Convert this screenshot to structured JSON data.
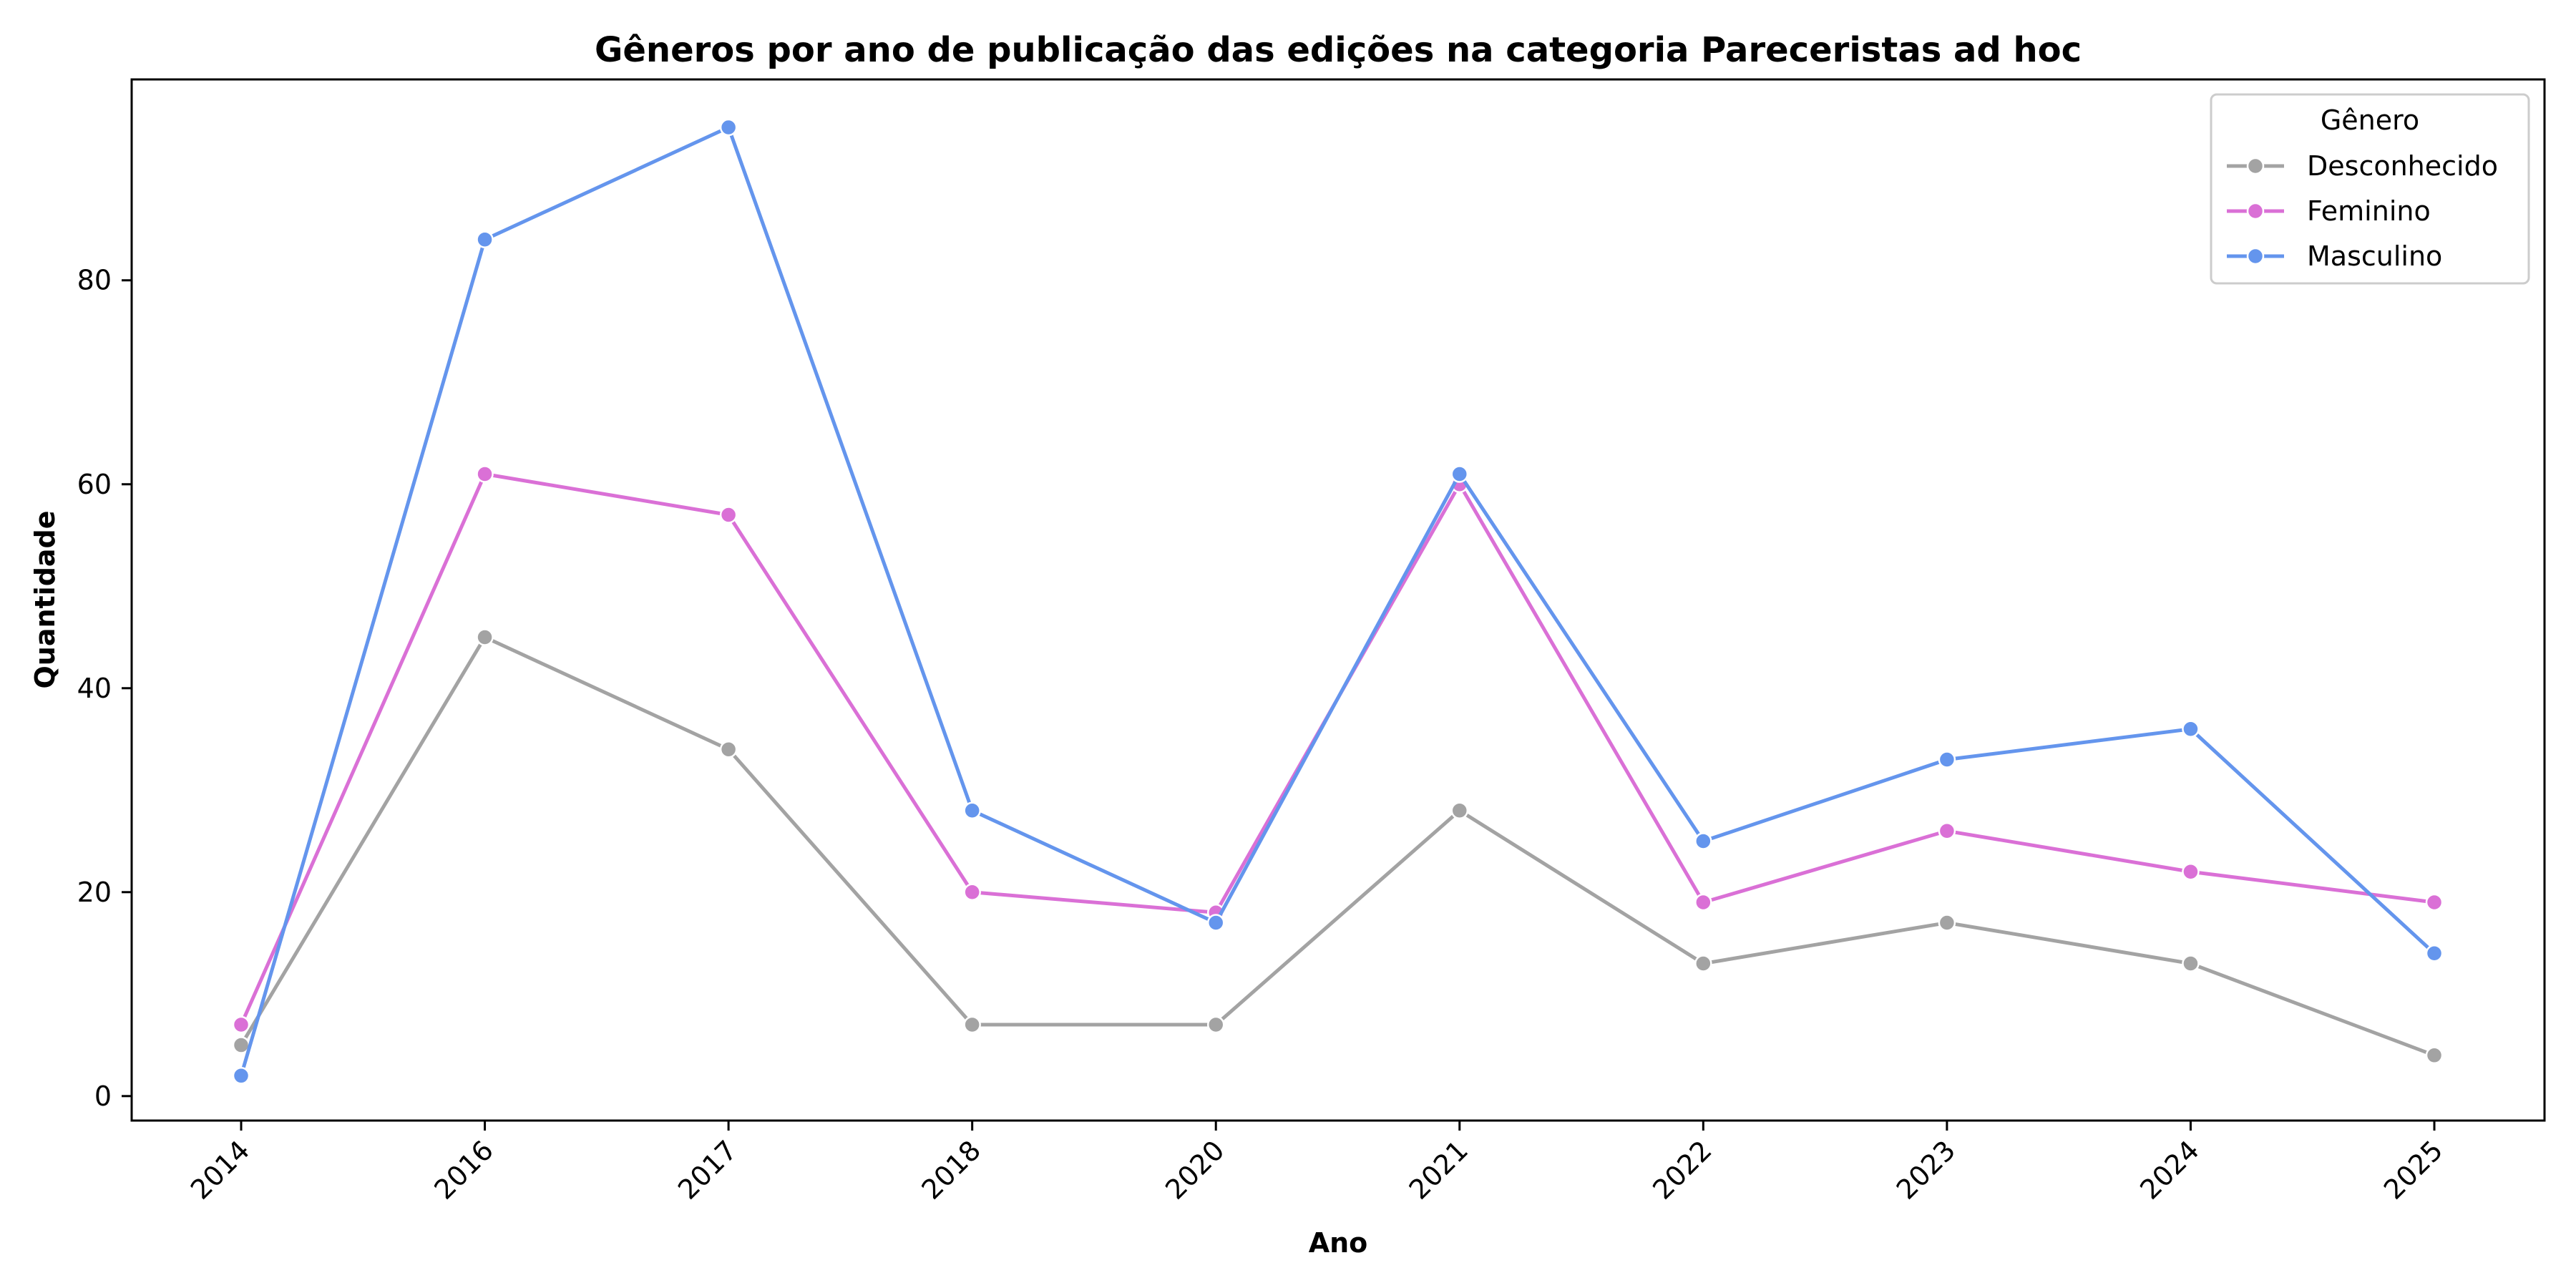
{
  "chart_data": {
    "type": "line",
    "title": "Gêneros por ano de publicação das edições na categoria Pareceristas ad hoc",
    "xlabel": "Ano",
    "ylabel": "Quantidade",
    "categories": [
      "2014",
      "2016",
      "2017",
      "2018",
      "2020",
      "2021",
      "2022",
      "2023",
      "2024",
      "2025"
    ],
    "ylim": [
      -2.4,
      99.7
    ],
    "yticks": [
      0,
      20,
      40,
      60,
      80
    ],
    "grid": false,
    "legend": {
      "title": "Gênero",
      "placement": "top-right"
    },
    "series": [
      {
        "name": "Desconhecido",
        "color": "#a3a3a3",
        "values": [
          5,
          45,
          34,
          7,
          7,
          28,
          13,
          17,
          13,
          4
        ]
      },
      {
        "name": "Feminino",
        "color": "#da70d6",
        "values": [
          7,
          61,
          57,
          20,
          18,
          60,
          19,
          26,
          22,
          19
        ]
      },
      {
        "name": "Masculino",
        "color": "#6495ed",
        "values": [
          2,
          84,
          95,
          28,
          17,
          61,
          25,
          33,
          36,
          14
        ]
      }
    ]
  }
}
